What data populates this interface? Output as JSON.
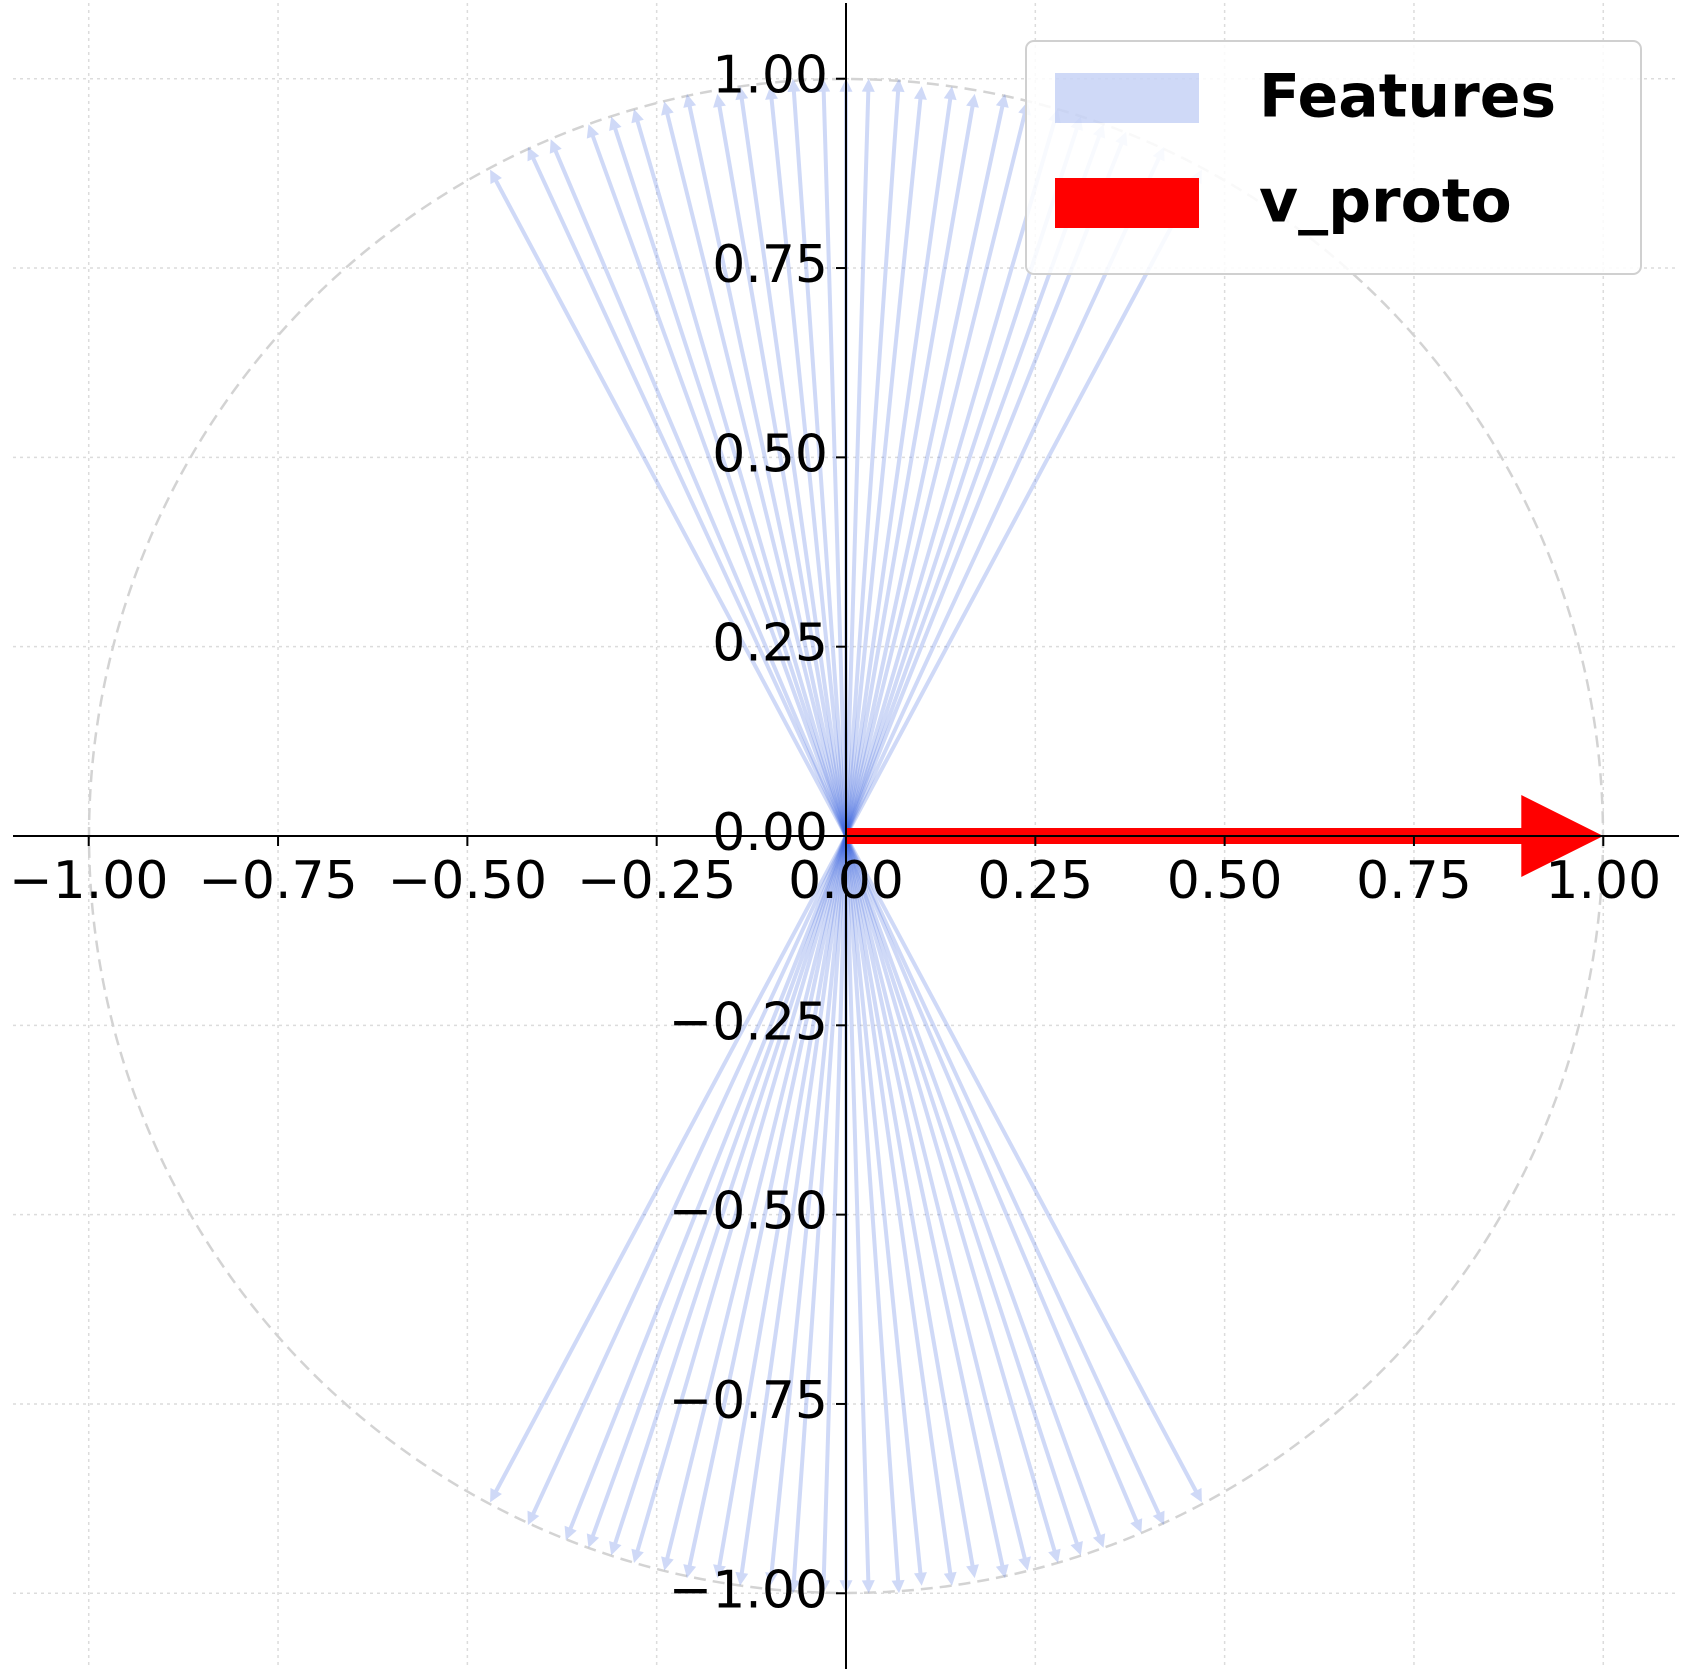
{
  "chart_data": {
    "type": "quiver",
    "series": [
      {
        "name": "Features",
        "color": "#4169e1",
        "opacity": 0.25,
        "x": [
          -0.47,
          -0.42,
          -0.39,
          -0.34,
          -0.31,
          -0.28,
          -0.24,
          -0.21,
          -0.17,
          -0.14,
          -0.1,
          -0.07,
          -0.03,
          0,
          0.03,
          0.07,
          0.1,
          0.14,
          0.17,
          0.21,
          0.24,
          0.28,
          0.31,
          0.34,
          0.37,
          0.42,
          0.47,
          0.47,
          0.42,
          0.39,
          0.34,
          0.31,
          0.28,
          0.24,
          0.21,
          0.17,
          0.14,
          0.1,
          0.07,
          0.03,
          0,
          -0.03,
          -0.07,
          -0.1,
          -0.14,
          -0.17,
          -0.21,
          -0.24,
          -0.28,
          -0.31,
          -0.34,
          -0.37,
          -0.42,
          -0.47
        ],
        "y": [
          0.88,
          0.91,
          0.92,
          0.94,
          0.95,
          0.96,
          0.97,
          0.98,
          0.98,
          0.99,
          0.99,
          1.0,
          1.0,
          1,
          1.0,
          1.0,
          0.99,
          0.99,
          0.98,
          0.98,
          0.97,
          0.96,
          0.95,
          0.94,
          0.93,
          0.91,
          0.88,
          -0.88,
          -0.91,
          -0.92,
          -0.94,
          -0.95,
          -0.96,
          -0.97,
          -0.98,
          -0.98,
          -0.99,
          -0.99,
          -1.0,
          -1.0,
          -1,
          -1.0,
          -1.0,
          -0.99,
          -0.99,
          -0.98,
          -0.98,
          -0.97,
          -0.96,
          -0.95,
          -0.94,
          -0.93,
          -0.91,
          -0.88
        ]
      },
      {
        "name": "v_proto",
        "color": "#ff0000",
        "opacity": 1,
        "x": [
          1
        ],
        "y": [
          0
        ]
      }
    ],
    "xlim": [
      -1.1,
      1.1
    ],
    "ylim": [
      -1.1,
      1.1
    ],
    "xticks": [
      {
        "value": -1,
        "label": "−1.00"
      },
      {
        "value": -0.75,
        "label": "−0.75"
      },
      {
        "value": -0.5,
        "label": "−0.50"
      },
      {
        "value": -0.25,
        "label": "−0.25"
      },
      {
        "value": 0,
        "label": "0.00"
      },
      0.25,
      {
        "value": 0.5,
        "label": "0.50"
      },
      0.75,
      {
        "value": 1,
        "label": "1.00"
      }
    ],
    "yticks": [
      {
        "value": -1,
        "label": "−1.00"
      },
      {
        "value": -0.75,
        "label": "−0.75"
      },
      {
        "value": -0.5,
        "label": "−0.50"
      },
      {
        "value": -0.25,
        "label": "−0.25"
      },
      {
        "value": 0,
        "label": "0.00"
      },
      0.25,
      {
        "value": 0.5,
        "label": "0.50"
      },
      0.75,
      {
        "value": 1,
        "label": "1.00"
      }
    ],
    "grid": true,
    "legend": "upper right"
  }
}
